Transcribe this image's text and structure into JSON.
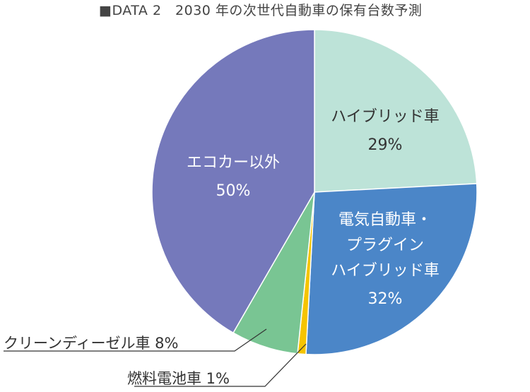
{
  "chart_data": {
    "type": "pie",
    "title": "■DATA 2　2030 年の次世代自動車の保有台数予測",
    "slices": [
      {
        "name": "ハイブリッド車",
        "label_lines": [
          "ハイブリッド車"
        ],
        "value": 29,
        "value_label": "29%",
        "color": "#bde3d8",
        "label_style": "inside-dark"
      },
      {
        "name": "電気自動車・プラグインハイブリッド車",
        "label_lines": [
          "電気自動車・",
          "プラグイン",
          "ハイブリッド車"
        ],
        "value": 32,
        "value_label": "32%",
        "color": "#4b86c8",
        "label_style": "inside-light"
      },
      {
        "name": "燃料電池車",
        "label_lines": [
          "燃料電池車 1%"
        ],
        "value": 1,
        "value_label": "",
        "color": "#f5c400",
        "label_style": "outside"
      },
      {
        "name": "クリーンディーゼル車",
        "label_lines": [
          "クリーンディーゼル車 8%"
        ],
        "value": 8,
        "value_label": "",
        "color": "#79c593",
        "label_style": "outside"
      },
      {
        "name": "エコカー以外",
        "label_lines": [
          "エコカー以外"
        ],
        "value": 50,
        "value_label": "50%",
        "color": "#7579bb",
        "label_style": "inside-light"
      }
    ],
    "start_angle_deg": 0,
    "direction": "clockwise",
    "legend": "none"
  }
}
